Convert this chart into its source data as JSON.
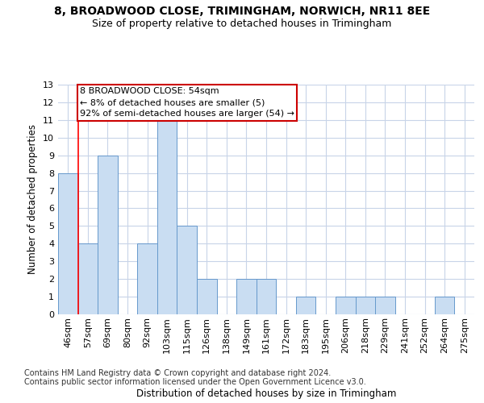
{
  "title": "8, BROADWOOD CLOSE, TRIMINGHAM, NORWICH, NR11 8EE",
  "subtitle": "Size of property relative to detached houses in Trimingham",
  "xlabel": "Distribution of detached houses by size in Trimingham",
  "ylabel": "Number of detached properties",
  "categories": [
    "46sqm",
    "57sqm",
    "69sqm",
    "80sqm",
    "92sqm",
    "103sqm",
    "115sqm",
    "126sqm",
    "138sqm",
    "149sqm",
    "161sqm",
    "172sqm",
    "183sqm",
    "195sqm",
    "206sqm",
    "218sqm",
    "229sqm",
    "241sqm",
    "252sqm",
    "264sqm",
    "275sqm"
  ],
  "values": [
    8,
    4,
    9,
    0,
    4,
    11,
    5,
    2,
    0,
    2,
    2,
    0,
    1,
    0,
    1,
    1,
    1,
    0,
    0,
    1,
    0
  ],
  "bar_color": "#c9ddf2",
  "bar_edge_color": "#6699cc",
  "annotation_text": "8 BROADWOOD CLOSE: 54sqm\n← 8% of detached houses are smaller (5)\n92% of semi-detached houses are larger (54) →",
  "annotation_box_color": "white",
  "annotation_box_edge_color": "#cc0000",
  "vline_x": 0.5,
  "ylim": [
    0,
    13
  ],
  "yticks": [
    0,
    1,
    2,
    3,
    4,
    5,
    6,
    7,
    8,
    9,
    10,
    11,
    12,
    13
  ],
  "grid_color": "#c8d4e8",
  "title_fontsize": 10,
  "subtitle_fontsize": 9,
  "xlabel_fontsize": 8.5,
  "ylabel_fontsize": 8.5,
  "tick_fontsize": 8,
  "annot_fontsize": 8,
  "footer_fontsize": 7,
  "footer": "Contains HM Land Registry data © Crown copyright and database right 2024.\nContains public sector information licensed under the Open Government Licence v3.0."
}
